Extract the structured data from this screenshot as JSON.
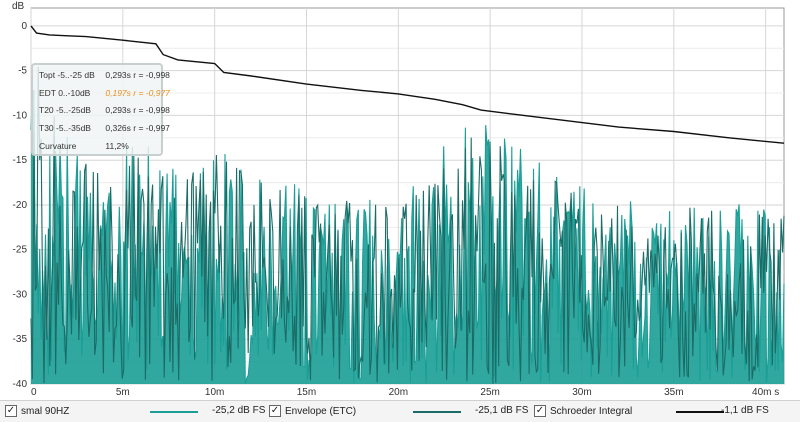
{
  "chart_data": {
    "type": "line",
    "y_unit": "dB",
    "x_unit": "s",
    "xlim": [
      0,
      0.041
    ],
    "ylim": [
      -40,
      2
    ],
    "x_ticks": [
      "0",
      "5m",
      "10m",
      "15m",
      "20m",
      "25m",
      "30m",
      "35m",
      "40m s"
    ],
    "y_ticks": [
      "0",
      "-5",
      "-10",
      "-15",
      "-20",
      "-25",
      "-30",
      "-35",
      "-40"
    ],
    "grid": true,
    "series": [
      {
        "name": "smal 90HZ",
        "color": "#1a9e96",
        "style": "filled-noise",
        "envelope_x": [
          0,
          0.001,
          0.002,
          0.004,
          0.006,
          0.008,
          0.01,
          0.012,
          0.015,
          0.02,
          0.024,
          0.03,
          0.035,
          0.04
        ],
        "envelope_y": [
          -1,
          -8,
          -12,
          -14,
          -11,
          -15,
          -13,
          -16,
          -18,
          -19,
          -10,
          -18,
          -19,
          -20
        ]
      },
      {
        "name": "Envelope (ETC)",
        "color": "#1b6b66",
        "style": "noise",
        "envelope_x": [
          0,
          0.001,
          0.002,
          0.004,
          0.006,
          0.008,
          0.01,
          0.012,
          0.015,
          0.02,
          0.024,
          0.03,
          0.035,
          0.04
        ],
        "envelope_y": [
          -1,
          -9,
          -13,
          -15,
          -12,
          -16,
          -14,
          -17,
          -19,
          -20,
          -11,
          -19,
          -20,
          -21
        ]
      },
      {
        "name": "Schroeder Integral",
        "color": "#111111",
        "style": "line",
        "x": [
          0,
          0.0003,
          0.001,
          0.002,
          0.003,
          0.005,
          0.0068,
          0.0072,
          0.008,
          0.01,
          0.0105,
          0.012,
          0.015,
          0.018,
          0.02,
          0.022,
          0.0235,
          0.0245,
          0.026,
          0.028,
          0.03,
          0.032,
          0.035,
          0.038,
          0.04,
          0.041
        ],
        "y": [
          0,
          -0.8,
          -1.0,
          -1.1,
          -1.2,
          -1.6,
          -2.0,
          -3.2,
          -3.8,
          -4.2,
          -5.2,
          -5.6,
          -6.5,
          -7.2,
          -7.6,
          -8.2,
          -8.8,
          -9.4,
          -9.8,
          -10.3,
          -10.8,
          -11.3,
          -11.8,
          -12.5,
          -12.9,
          -13.1
        ]
      }
    ]
  },
  "stats": {
    "rows": [
      {
        "label": "Topt -5..-25 dB",
        "value": "0,293s",
        "r": "r = -0,998",
        "highlight": false
      },
      {
        "label": "EDT  0..-10dB",
        "value": "0,197s",
        "r": "r = -0,977",
        "highlight": true
      },
      {
        "label": "T20 -5..-25dB",
        "value": "0,293s",
        "r": "r = -0,998",
        "highlight": false
      },
      {
        "label": "T30 -5..-35dB",
        "value": "0,326s",
        "r": "r = -0,997",
        "highlight": false
      },
      {
        "label": "Curvature",
        "value": "11,2%",
        "r": "",
        "highlight": false
      }
    ]
  },
  "legend": {
    "items": [
      {
        "label": "smal 90HZ",
        "value": "-25,2 dB FS",
        "color": "#1a9e96",
        "checked": "✓"
      },
      {
        "label": "Envelope (ETC)",
        "value": "-25,1 dB FS",
        "color": "#1b6b66",
        "checked": "✓"
      },
      {
        "label": "Schroeder Integral",
        "value": "-1,1 dB FS",
        "color": "#111111",
        "checked": "✓"
      }
    ]
  }
}
